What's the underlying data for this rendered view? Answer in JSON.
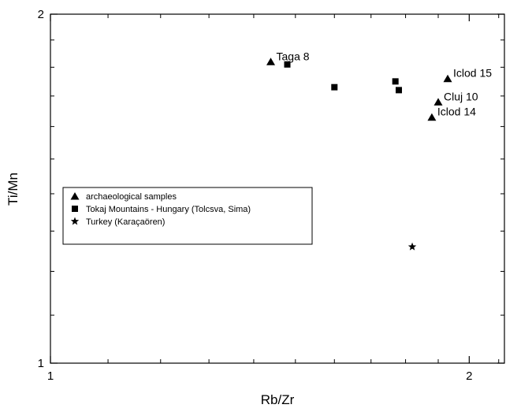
{
  "chart_data": {
    "type": "scatter",
    "title": "",
    "xlabel": "Rb/Zr",
    "ylabel": "Ti/Mn",
    "xlim": [
      1,
      2.12
    ],
    "ylim": [
      1,
      2
    ],
    "x_scale": "log",
    "y_scale": "log",
    "x_ticks": [
      {
        "value": 1,
        "label": "1"
      },
      {
        "value": 2,
        "label": "2"
      }
    ],
    "y_ticks": [
      {
        "value": 1,
        "label": "1"
      },
      {
        "value": 2,
        "label": "2"
      }
    ],
    "x_minor_ticks": [
      1.1,
      1.2,
      1.3,
      1.4,
      1.5,
      1.6,
      1.7,
      1.8,
      1.9,
      2.1
    ],
    "y_minor_ticks": [
      1.1,
      1.2,
      1.3,
      1.4,
      1.5,
      1.6,
      1.7,
      1.8,
      1.9
    ],
    "grid": false,
    "legend_position": "left-middle",
    "series": [
      {
        "name": "archaeological samples",
        "marker": "triangle",
        "points": [
          {
            "x": 1.44,
            "y": 1.82,
            "label": "Taga 8"
          },
          {
            "x": 1.93,
            "y": 1.76,
            "label": "Iclod 15"
          },
          {
            "x": 1.9,
            "y": 1.68,
            "label": "Cluj 10"
          },
          {
            "x": 1.88,
            "y": 1.63,
            "label": "Iclod 14"
          }
        ]
      },
      {
        "name": "Tokaj Mountains - Hungary (Tolcsva, Sima)",
        "marker": "square",
        "points": [
          {
            "x": 1.48,
            "y": 1.81
          },
          {
            "x": 1.6,
            "y": 1.73
          },
          {
            "x": 1.77,
            "y": 1.75
          },
          {
            "x": 1.78,
            "y": 1.72
          }
        ]
      },
      {
        "name": "Turkey (Karaçaören)",
        "marker": "star",
        "points": [
          {
            "x": 1.82,
            "y": 1.26
          }
        ]
      }
    ]
  }
}
